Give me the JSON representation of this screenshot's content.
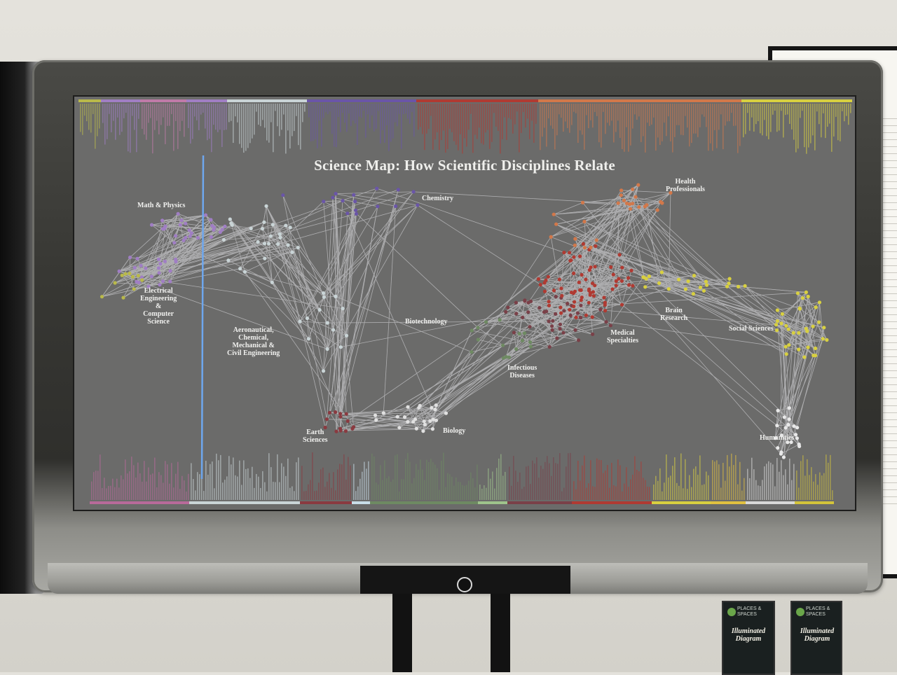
{
  "title": "Science Map: How Scientific Disciplines Relate",
  "labels": {
    "math_physics": "Math & Physics",
    "chemistry": "Chemistry",
    "health": [
      "Health",
      "Professionals"
    ],
    "electrical": [
      "Electrical",
      "Engineering",
      "&",
      "Computer",
      "Science"
    ],
    "aero": [
      "Aeronautical,",
      "Chemical,",
      "Mechanical &",
      "Civil Engineering"
    ],
    "biotech": "Biotechnology",
    "brain": [
      "Brain",
      "Research"
    ],
    "social": "Social Sciences",
    "medical": [
      "Medical",
      "Specialties"
    ],
    "infectious": [
      "Infectious",
      "Diseases"
    ],
    "earth": [
      "Earth",
      "Sciences"
    ],
    "biology": "Biology",
    "humanities": "Humanities"
  },
  "brochure": {
    "brand": [
      "PLACES &",
      "SPACES"
    ],
    "title": [
      "Illuminated",
      "Diagram"
    ]
  },
  "colors": {
    "math": "#a07ec4",
    "chemistry": "#6a55a8",
    "electrical": "#b9b94a",
    "engineering": "#c9d4d6",
    "health": "#d2784a",
    "medical": "#b03a32",
    "social": "#d8d040",
    "humanities": "#e8e8e8",
    "biology": "#6e8a62",
    "earth": "#8a3a40",
    "infectious": "#7a4048",
    "lines": "#e6e6ea",
    "cursor": "#6ea7ee"
  }
}
